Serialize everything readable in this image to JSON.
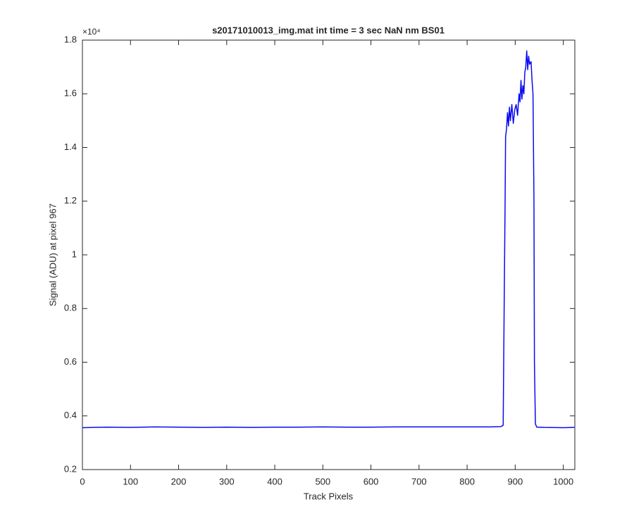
{
  "chart_data": {
    "type": "line",
    "title": "s20171010013_img.mat int time = 3 sec  NaN nm BS01",
    "x_label": "Track Pixels",
    "y_label": "Signal (ADU) at pixel 967",
    "y_exponent_label": "×10⁴",
    "x": [
      0,
      50,
      100,
      150,
      200,
      250,
      300,
      350,
      400,
      450,
      500,
      550,
      600,
      650,
      700,
      750,
      800,
      850,
      870,
      875,
      877,
      879,
      880,
      882,
      884,
      886,
      888,
      890,
      893,
      896,
      899,
      902,
      905,
      908,
      910,
      912,
      914,
      916,
      918,
      920,
      922,
      924,
      926,
      928,
      930,
      933,
      935,
      937,
      939,
      940,
      942,
      945,
      960,
      1000,
      1023
    ],
    "series": [
      {
        "color": "#0b0bf0",
        "values": [
          0.356,
          0.358,
          0.357,
          0.359,
          0.358,
          0.357,
          0.358,
          0.357,
          0.358,
          0.358,
          0.359,
          0.358,
          0.358,
          0.359,
          0.359,
          0.359,
          0.359,
          0.359,
          0.36,
          0.365,
          0.8,
          1.2,
          1.44,
          1.47,
          1.53,
          1.48,
          1.55,
          1.5,
          1.56,
          1.49,
          1.54,
          1.56,
          1.52,
          1.6,
          1.57,
          1.65,
          1.58,
          1.63,
          1.6,
          1.68,
          1.7,
          1.76,
          1.69,
          1.74,
          1.71,
          1.72,
          1.65,
          1.6,
          1.2,
          0.6,
          0.37,
          0.358,
          0.357,
          0.356,
          0.357
        ]
      }
    ],
    "xlim": [
      0,
      1024
    ],
    "ylim": [
      0.2,
      1.8
    ],
    "xticks": [
      0,
      100,
      200,
      300,
      400,
      500,
      600,
      700,
      800,
      900,
      1000
    ],
    "yticks": [
      0.2,
      0.4,
      0.6,
      0.8,
      1,
      1.2,
      1.4,
      1.6,
      1.8
    ]
  }
}
